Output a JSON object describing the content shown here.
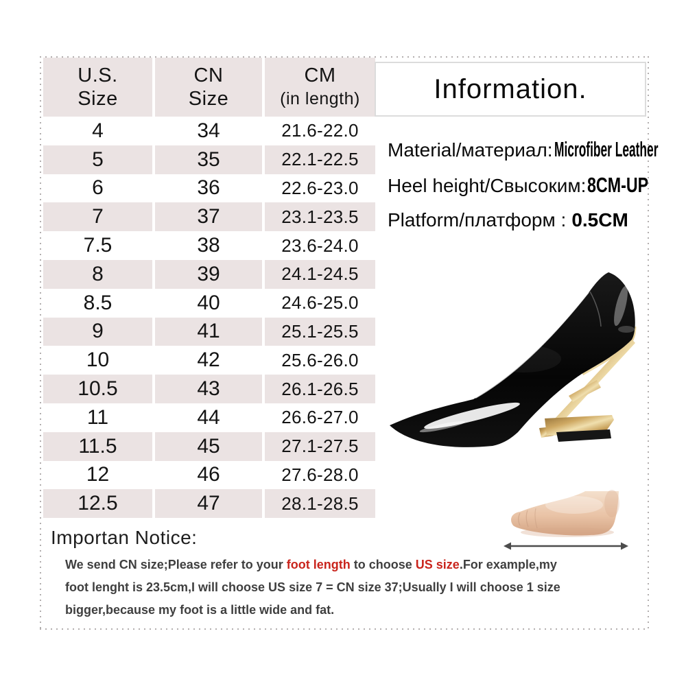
{
  "size_chart": {
    "header": [
      {
        "line1": "U.S.",
        "line2": "Size"
      },
      {
        "line1": "CN",
        "line2": "Size"
      },
      {
        "line1": "CM",
        "line2": "(in length)"
      }
    ],
    "rows": [
      {
        "us": "4",
        "cn": "34",
        "cm": "21.6-22.0"
      },
      {
        "us": "5",
        "cn": "35",
        "cm": "22.1-22.5"
      },
      {
        "us": "6",
        "cn": "36",
        "cm": "22.6-23.0"
      },
      {
        "us": "7",
        "cn": "37",
        "cm": "23.1-23.5"
      },
      {
        "us": "7.5",
        "cn": "38",
        "cm": "23.6-24.0"
      },
      {
        "us": "8",
        "cn": "39",
        "cm": "24.1-24.5"
      },
      {
        "us": "8.5",
        "cn": "40",
        "cm": "24.6-25.0"
      },
      {
        "us": "9",
        "cn": "41",
        "cm": "25.1-25.5"
      },
      {
        "us": "10",
        "cn": "42",
        "cm": "25.6-26.0"
      },
      {
        "us": "10.5",
        "cn": "43",
        "cm": "26.1-26.5"
      },
      {
        "us": "11",
        "cn": "44",
        "cm": "26.6-27.0"
      },
      {
        "us": "11.5",
        "cn": "45",
        "cm": "27.1-27.5"
      },
      {
        "us": "12",
        "cn": "46",
        "cm": "27.6-28.0"
      },
      {
        "us": "12.5",
        "cn": "47",
        "cm": "28.1-28.5"
      }
    ]
  },
  "info": {
    "title": "Information.",
    "specs": [
      {
        "label": "Material/материал:",
        "value": "Microfiber Leather"
      },
      {
        "label": "Heel height/Свысоким:",
        "value": "8CM-UP"
      },
      {
        "label": "Platform/платформ :",
        "value": "0.5CM"
      }
    ]
  },
  "product": {
    "shoe_image_alt": "black-patent-pointed-pump-with-gold-f-shaped-heel",
    "foot_image_alt": "bare-foot-side-view-with-length-arrow"
  },
  "notice": {
    "heading": "Importan Notice:",
    "lines": [
      [
        {
          "t": "We send CN size;Please refer to your "
        },
        {
          "t": "foot length",
          "red": true
        },
        {
          "t": " to choose "
        },
        {
          "t": "US size",
          "red": true
        },
        {
          "t": ".For example,my"
        }
      ],
      [
        {
          "t": "foot lenght is 23.5cm,I will choose US size 7 = CN size 37;Usually I will choose 1 size"
        }
      ],
      [
        {
          "t": "bigger,because my foot is a little wide and fat."
        }
      ]
    ]
  },
  "colors": {
    "row_alt_pink": "#ebe3e3",
    "notice_red": "#c9241c",
    "heel_gold": "#c9a25c",
    "shoe_black": "#0d0d0d",
    "frame_dot": "#b2aeae"
  }
}
